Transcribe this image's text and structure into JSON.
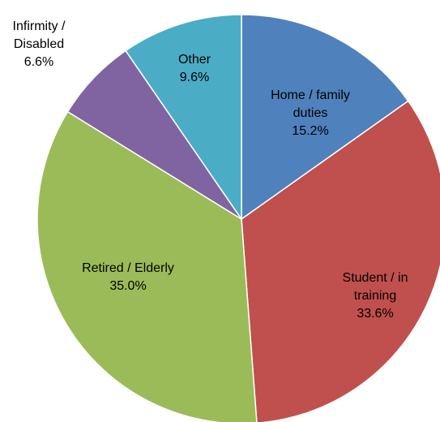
{
  "chart_data": {
    "type": "pie",
    "categories": [
      "Home / family duties",
      "Student / in training",
      "Retired / Elderly",
      "Infirmity / Disabled",
      "Other"
    ],
    "values": [
      15.2,
      33.6,
      35.0,
      6.6,
      9.6
    ],
    "value_labels": [
      "15.2%",
      "33.6%",
      "35.0%",
      "6.6%",
      "9.6%"
    ],
    "colors": [
      "#4f81bd",
      "#c0504d",
      "#9bbb59",
      "#8064a2",
      "#4bacc6"
    ],
    "start_angle": 0,
    "direction": "clockwise"
  }
}
